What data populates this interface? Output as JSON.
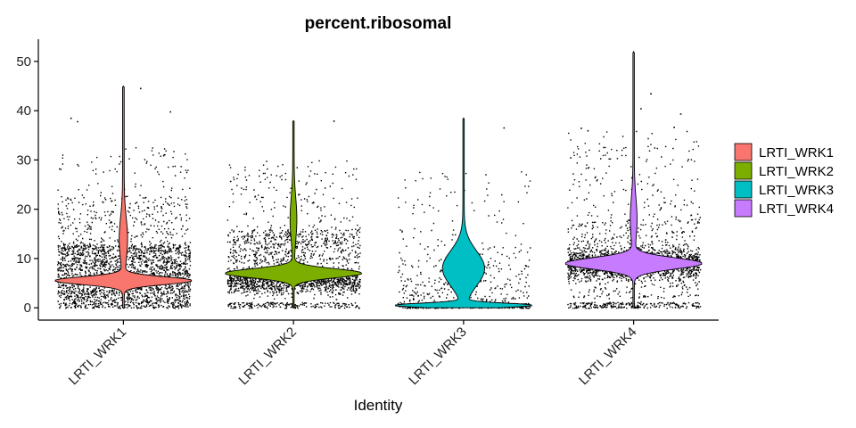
{
  "chart_data": {
    "type": "violin",
    "title": "percent.ribosomal",
    "xlabel": "Identity",
    "ylabel": "",
    "ylim": [
      -2.5,
      54.5
    ],
    "yticks": [
      0,
      10,
      20,
      30,
      40,
      50
    ],
    "categories": [
      "LRTI_WRK1",
      "LRTI_WRK2",
      "LRTI_WRK3",
      "LRTI_WRK4"
    ],
    "series": [
      {
        "category": "LRTI_WRK1",
        "color": "#F8766D",
        "max": 45,
        "mode": 5.5,
        "dense_range": [
          0,
          22
        ]
      },
      {
        "category": "LRTI_WRK2",
        "color": "#7CAE00",
        "max": 38,
        "mode": 7,
        "dense_range": [
          0,
          15
        ]
      },
      {
        "category": "LRTI_WRK3",
        "color": "#00BFC4",
        "max": 38.5,
        "mode": 0.5,
        "dense_range": [
          0,
          5
        ]
      },
      {
        "category": "LRTI_WRK4",
        "color": "#C77CFF",
        "max": 52,
        "mode": 9,
        "dense_range": [
          0,
          15
        ]
      }
    ],
    "grid": false,
    "legend_position": "right",
    "legend": [
      "LRTI_WRK1",
      "LRTI_WRK2",
      "LRTI_WRK3",
      "LRTI_WRK4"
    ]
  }
}
